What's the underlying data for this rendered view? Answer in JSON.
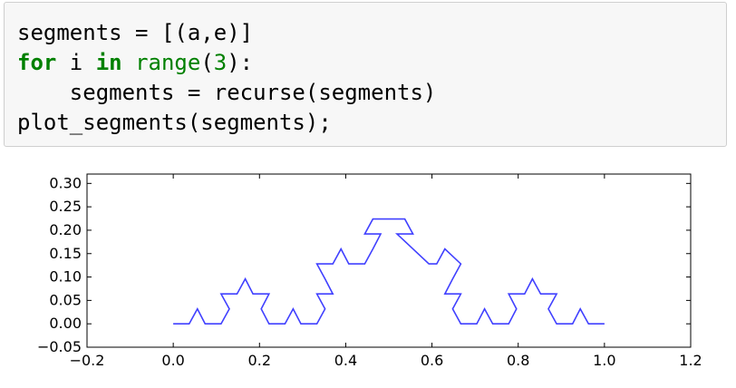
{
  "code_cell": {
    "lines": [
      [
        {
          "t": "segments = [(a,e)]",
          "c": ""
        }
      ],
      [
        {
          "t": "for",
          "c": "kw"
        },
        {
          "t": " i ",
          "c": ""
        },
        {
          "t": "in",
          "c": "kw"
        },
        {
          "t": " ",
          "c": ""
        },
        {
          "t": "range",
          "c": "bi"
        },
        {
          "t": "(",
          "c": ""
        },
        {
          "t": "3",
          "c": "num"
        },
        {
          "t": "):",
          "c": ""
        }
      ],
      [
        {
          "t": "    segments = recurse(segments)",
          "c": ""
        }
      ],
      [
        {
          "t": "plot_segments(segments);",
          "c": ""
        }
      ]
    ]
  },
  "chart_data": {
    "type": "line",
    "title": "",
    "xlabel": "",
    "ylabel": "",
    "xlim": [
      -0.2,
      1.2
    ],
    "ylim": [
      -0.05,
      0.32
    ],
    "x_ticks": [
      "−0.2",
      "0.0",
      "0.2",
      "0.4",
      "0.6",
      "0.8",
      "1.0",
      "1.2"
    ],
    "y_ticks": [
      "0.30",
      "0.25",
      "0.20",
      "0.15",
      "0.10",
      "0.05",
      "0.00",
      "−0.05"
    ],
    "x_tick_values": [
      -0.2,
      0.0,
      0.2,
      0.4,
      0.6,
      0.8,
      1.0,
      1.2
    ],
    "y_tick_values": [
      0.3,
      0.25,
      0.2,
      0.15,
      0.1,
      0.05,
      0.0,
      -0.05
    ],
    "grid": false,
    "line_color": "#4040ff",
    "series": [
      {
        "description": "Koch curve after 3 iterations from (0,0) to (1,0)",
        "x": [
          0.0,
          0.037,
          0.056,
          0.074,
          0.111,
          0.13,
          0.111,
          0.148,
          0.167,
          0.185,
          0.222,
          0.204,
          0.222,
          0.259,
          0.278,
          0.296,
          0.333,
          0.352,
          0.333,
          0.37,
          0.352,
          0.333,
          0.37,
          0.389,
          0.407,
          0.444,
          0.463,
          0.481,
          0.444,
          0.463,
          0.5,
          0.537,
          0.556,
          0.519,
          0.556,
          0.593,
          0.611,
          0.63,
          0.667,
          0.648,
          0.63,
          0.667,
          0.648,
          0.667,
          0.704,
          0.722,
          0.741,
          0.778,
          0.796,
          0.778,
          0.815,
          0.833,
          0.852,
          0.889,
          0.87,
          0.889,
          0.926,
          0.944,
          0.963,
          1.0
        ],
        "y": [
          0.0,
          0.0,
          0.032,
          0.0,
          0.0,
          0.032,
          0.064,
          0.064,
          0.096,
          0.064,
          0.064,
          0.032,
          0.0,
          0.0,
          0.032,
          0.0,
          0.0,
          0.032,
          0.064,
          0.064,
          0.096,
          0.128,
          0.128,
          0.16,
          0.128,
          0.128,
          0.16,
          0.192,
          0.192,
          0.224,
          0.224,
          0.224,
          0.192,
          0.192,
          0.16,
          0.128,
          0.128,
          0.16,
          0.128,
          0.096,
          0.064,
          0.064,
          0.032,
          0.0,
          0.0,
          0.032,
          0.0,
          0.0,
          0.032,
          0.064,
          0.064,
          0.096,
          0.064,
          0.064,
          0.032,
          0.0,
          0.0,
          0.032,
          0.0,
          0.0
        ]
      }
    ]
  }
}
